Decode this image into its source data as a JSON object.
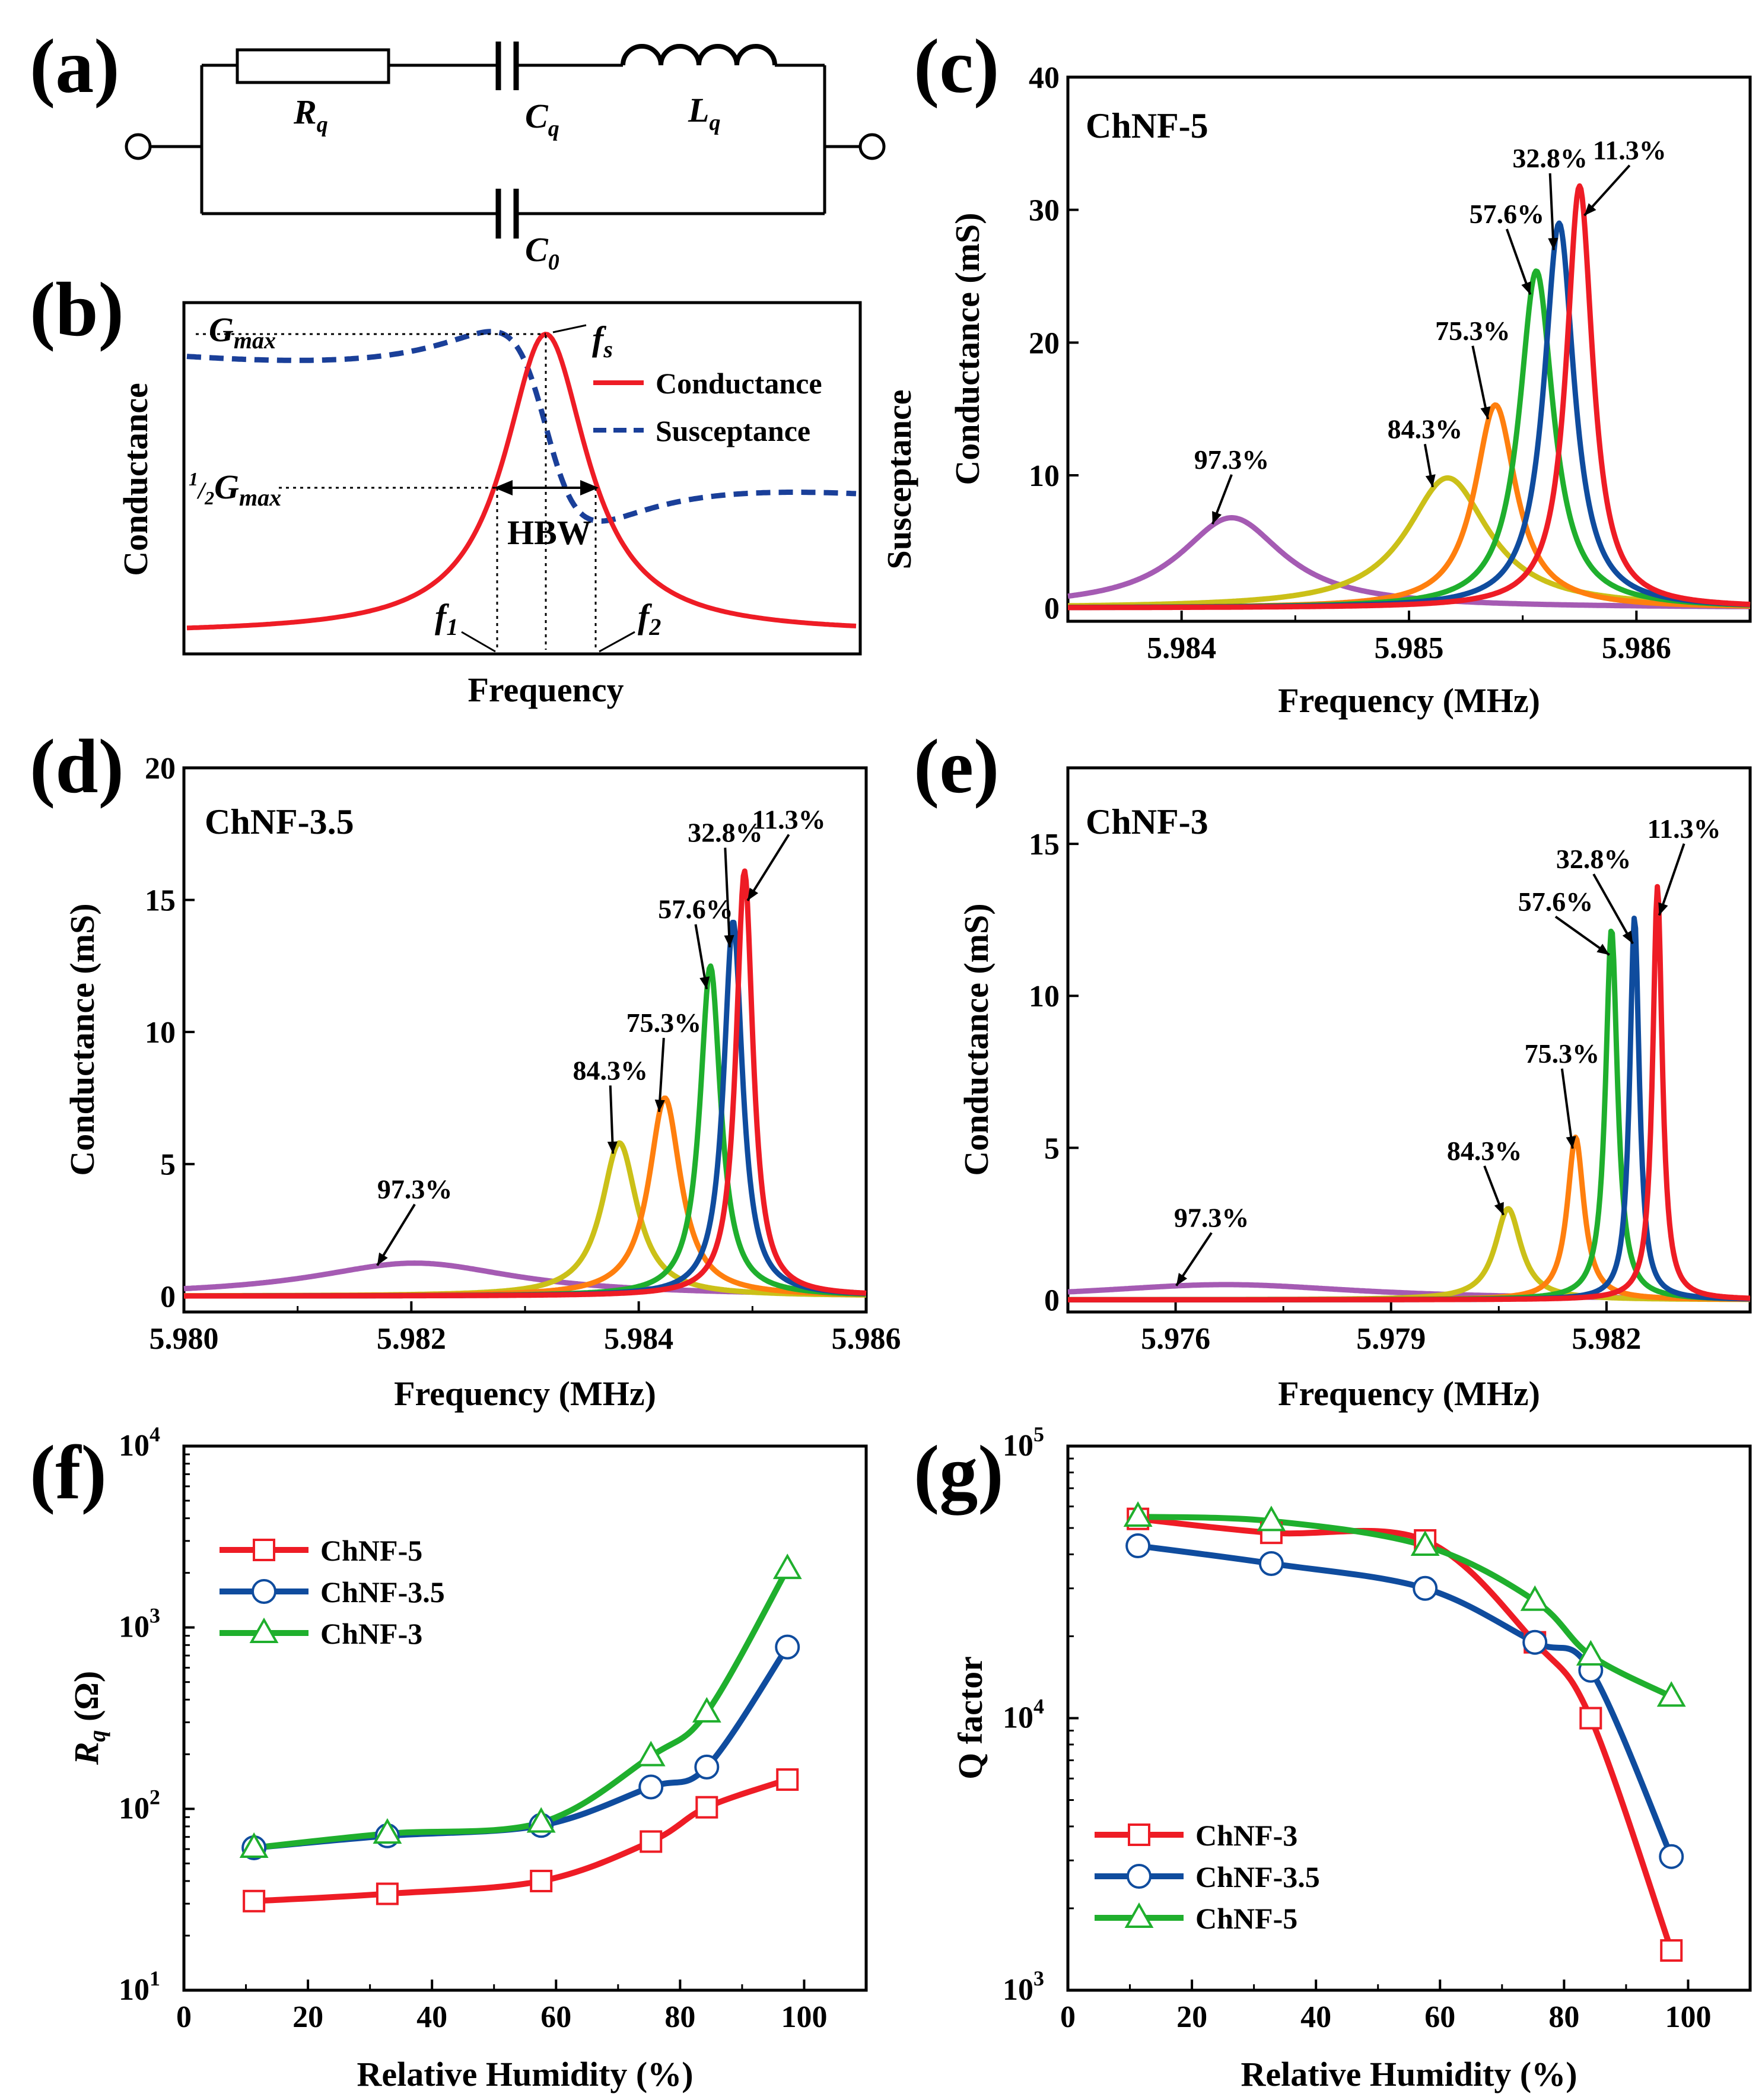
{
  "colors": {
    "red": "#ee1c25",
    "blue": "#0f4c9e",
    "green": "#1faf2d",
    "orange": "#ff7f0e",
    "yellow": "#cbc018",
    "purple": "#a55bb3",
    "dashblue": "#1a3f99"
  },
  "panels": {
    "a": {
      "tag": "(a)",
      "labels": {
        "rq": "R",
        "rq_sub": "q",
        "cq": "C",
        "cq_sub": "q",
        "lq": "L",
        "lq_sub": "q",
        "c0": "C",
        "c0_sub": "0"
      }
    },
    "b": {
      "tag": "(b)",
      "ylabel": "Conductance",
      "ylabel_right": "Susceptance",
      "xlabel": "Frequency",
      "gmax": "G",
      "gmax_sub": "max",
      "half": "1",
      "half_den": "2",
      "halfg": "G",
      "halfg_sub": "max",
      "fs": "f",
      "fs_sub": "s",
      "f1": "f",
      "f1_sub": "1",
      "f2": "f",
      "f2_sub": "2",
      "hbw": "HBW",
      "legend": [
        "Conductance",
        "Susceptance"
      ]
    },
    "c": {
      "tag": "(c)",
      "title": "ChNF-5",
      "ylabel": "Conductance (mS)",
      "xlabel": "Frequency (MHz)"
    },
    "d": {
      "tag": "(d)",
      "title": "ChNF-3.5",
      "ylabel": "Conductance (mS)",
      "xlabel": "Frequency (MHz)"
    },
    "e": {
      "tag": "(e)",
      "title": "ChNF-3",
      "ylabel": "Conductance (mS)",
      "xlabel": "Frequency (MHz)"
    },
    "f": {
      "tag": "(f)",
      "ylabel": "R",
      "ylabel_sub": "q",
      "ylabel_unit": " (Ω)",
      "xlabel": "Relative Humidity (%)"
    },
    "g": {
      "tag": "(g)",
      "ylabel": "Q factor",
      "xlabel": "Relative Humidity (%)"
    }
  },
  "chart_data": [
    {
      "id": "b",
      "type": "line",
      "title": "",
      "xlabel": "Frequency",
      "ylabel": "Conductance",
      "ylabel_right": "Susceptance",
      "series": [
        {
          "name": "Conductance",
          "style": "solid"
        },
        {
          "name": "Susceptance",
          "style": "dashed"
        }
      ],
      "annotations": [
        "Gmax",
        "1/2 Gmax",
        "fs",
        "f1",
        "f2",
        "HBW"
      ]
    },
    {
      "id": "c",
      "type": "line",
      "title": "ChNF-5",
      "xlabel": "Frequency (MHz)",
      "ylabel": "Conductance (mS)",
      "xlim": [
        5.9835,
        5.9865
      ],
      "ylim": [
        -1,
        40
      ],
      "xticks": [
        5.984,
        5.985,
        5.986
      ],
      "xtick_labels": [
        "5.984",
        "5.985",
        "5.986"
      ],
      "yticks": [
        0,
        10,
        20,
        30,
        40
      ],
      "ytick_labels": [
        "0",
        "10",
        "20",
        "30",
        "40"
      ],
      "series": [
        {
          "name": "11.3%",
          "color": "red",
          "peak_x": 5.98575,
          "peak_y": 31.8,
          "hw": 7e-05,
          "ann": [
            5.98597,
            33.8
          ]
        },
        {
          "name": "32.8%",
          "color": "blue",
          "peak_x": 5.98566,
          "peak_y": 29.0,
          "hw": 8e-05,
          "ann": [
            5.98562,
            33.2
          ]
        },
        {
          "name": "57.6%",
          "color": "green",
          "peak_x": 5.98556,
          "peak_y": 25.4,
          "hw": 9e-05,
          "ann": [
            5.98543,
            29.0
          ]
        },
        {
          "name": "75.3%",
          "color": "orange",
          "peak_x": 5.98538,
          "peak_y": 15.3,
          "hw": 0.00011,
          "ann": [
            5.98528,
            20.2
          ]
        },
        {
          "name": "84.3%",
          "color": "yellow",
          "peak_x": 5.98517,
          "peak_y": 9.8,
          "hw": 0.00022,
          "ann": [
            5.98507,
            12.8
          ]
        },
        {
          "name": "97.3%",
          "color": "purple",
          "peak_x": 5.98422,
          "peak_y": 6.8,
          "hw": 0.00028,
          "ann": [
            5.98422,
            10.5
          ]
        }
      ]
    },
    {
      "id": "d",
      "type": "line",
      "title": "ChNF-3.5",
      "xlabel": "Frequency (MHz)",
      "ylabel": "Conductance (mS)",
      "xlim": [
        5.98,
        5.986
      ],
      "ylim": [
        -0.6,
        20
      ],
      "xticks": [
        5.98,
        5.982,
        5.984,
        5.986
      ],
      "xtick_labels": [
        "5.980",
        "5.982",
        "5.984",
        "5.986"
      ],
      "yticks": [
        0,
        5,
        10,
        15,
        20
      ],
      "ytick_labels": [
        "0",
        "5",
        "10",
        "15",
        "20"
      ],
      "series": [
        {
          "name": "11.3%",
          "color": "red",
          "peak_x": 5.98493,
          "peak_y": 16.1,
          "hw": 9e-05,
          "ann": [
            5.98532,
            17.7
          ]
        },
        {
          "name": "32.8%",
          "color": "blue",
          "peak_x": 5.98483,
          "peak_y": 14.2,
          "hw": 0.0001,
          "ann": [
            5.98476,
            17.2
          ]
        },
        {
          "name": "57.6%",
          "color": "green",
          "peak_x": 5.98463,
          "peak_y": 12.5,
          "hw": 0.00011,
          "ann": [
            5.9845,
            14.3
          ]
        },
        {
          "name": "75.3%",
          "color": "orange",
          "peak_x": 5.98423,
          "peak_y": 7.5,
          "hw": 0.00017,
          "ann": [
            5.98422,
            10.0
          ]
        },
        {
          "name": "84.3%",
          "color": "yellow",
          "peak_x": 5.98383,
          "peak_y": 5.8,
          "hw": 0.00019,
          "ann": [
            5.98375,
            8.2
          ]
        },
        {
          "name": "97.3%",
          "color": "purple",
          "peak_x": 5.98203,
          "peak_y": 1.25,
          "hw": 0.0011,
          "ann": [
            5.98203,
            3.7
          ]
        }
      ]
    },
    {
      "id": "e",
      "type": "line",
      "title": "ChNF-3",
      "xlabel": "Frequency (MHz)",
      "ylabel": "Conductance (mS)",
      "xlim": [
        5.9745,
        5.984
      ],
      "ylim": [
        -0.4,
        17.5
      ],
      "xticks": [
        5.976,
        5.979,
        5.982
      ],
      "xtick_labels": [
        "5.976",
        "5.979",
        "5.982"
      ],
      "yticks": [
        0,
        5,
        10,
        15
      ],
      "ytick_labels": [
        "0",
        "5",
        "10",
        "15"
      ],
      "series": [
        {
          "name": "11.3%",
          "color": "red",
          "peak_x": 5.98271,
          "peak_y": 13.6,
          "hw": 8e-05,
          "ann": [
            5.98308,
            15.2
          ]
        },
        {
          "name": "32.8%",
          "color": "blue",
          "peak_x": 5.98239,
          "peak_y": 12.6,
          "hw": 8e-05,
          "ann": [
            5.98182,
            14.2
          ]
        },
        {
          "name": "57.6%",
          "color": "green",
          "peak_x": 5.98207,
          "peak_y": 12.2,
          "hw": 0.0001,
          "ann": [
            5.98129,
            12.8
          ]
        },
        {
          "name": "75.3%",
          "color": "orange",
          "peak_x": 5.98157,
          "peak_y": 5.35,
          "hw": 0.00014,
          "ann": [
            5.98138,
            7.8
          ]
        },
        {
          "name": "84.3%",
          "color": "yellow",
          "peak_x": 5.98063,
          "peak_y": 3.0,
          "hw": 0.00022,
          "ann": [
            5.9803,
            4.6
          ]
        },
        {
          "name": "97.3%",
          "color": "purple",
          "peak_x": 5.9767,
          "peak_y": 0.5,
          "hw": 0.0023,
          "ann": [
            5.9765,
            2.4
          ]
        }
      ]
    },
    {
      "id": "f",
      "type": "line",
      "yscale": "log",
      "xlabel": "Relative Humidity (%)",
      "ylabel": "Rq (Ω)",
      "xlim": [
        0,
        110
      ],
      "ylim": [
        10,
        10000
      ],
      "xticks": [
        0,
        20,
        40,
        60,
        80,
        100
      ],
      "xtick_labels": [
        "0",
        "20",
        "40",
        "60",
        "80",
        "100"
      ],
      "yticks": [
        10,
        100,
        1000,
        10000
      ],
      "ytick_exp": [
        "1",
        "2",
        "3",
        "4"
      ],
      "x": [
        11.3,
        32.8,
        57.6,
        75.3,
        84.3,
        97.3
      ],
      "series": [
        {
          "name": "ChNF-5",
          "color": "red",
          "marker": "square",
          "values": [
            31,
            34,
            40,
            66,
            102,
            145
          ]
        },
        {
          "name": "ChNF-3.5",
          "color": "blue",
          "marker": "circle",
          "values": [
            61,
            71,
            81,
            132,
            170,
            780
          ]
        },
        {
          "name": "ChNF-3",
          "color": "green",
          "marker": "triangle",
          "values": [
            61,
            73,
            84,
            195,
            340,
            2100
          ]
        }
      ]
    },
    {
      "id": "g",
      "type": "line",
      "yscale": "log",
      "xlabel": "Relative Humidity (%)",
      "ylabel": "Q factor",
      "xlim": [
        0,
        110
      ],
      "ylim": [
        1000,
        100000
      ],
      "xticks": [
        0,
        20,
        40,
        60,
        80,
        100
      ],
      "xtick_labels": [
        "0",
        "20",
        "40",
        "60",
        "80",
        "100"
      ],
      "yticks": [
        1000,
        10000,
        100000
      ],
      "ytick_exp": [
        "3",
        "4",
        "5"
      ],
      "x": [
        11.3,
        32.8,
        57.6,
        75.3,
        84.3,
        97.3
      ],
      "series": [
        {
          "name": "ChNF-3",
          "color": "red",
          "marker": "square",
          "values": [
            54000,
            48000,
            45000,
            19000,
            10000,
            1400
          ]
        },
        {
          "name": "ChNF-3.5",
          "color": "blue",
          "marker": "circle",
          "values": [
            43000,
            37000,
            30000,
            19000,
            15000,
            3100
          ]
        },
        {
          "name": "ChNF-5",
          "color": "green",
          "marker": "triangle",
          "values": [
            55000,
            53000,
            43000,
            27000,
            17000,
            12000
          ]
        }
      ]
    }
  ]
}
